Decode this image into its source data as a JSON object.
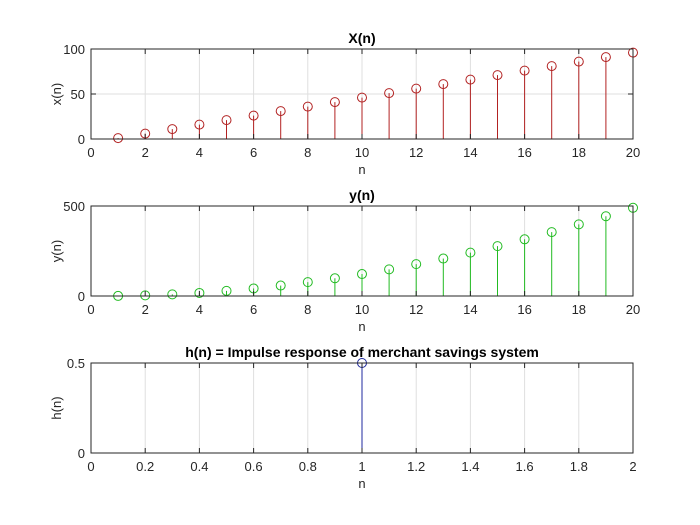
{
  "figure": {
    "background": "#ffffff",
    "axes_color": "#262626",
    "grid_color": "#dfdfdf"
  },
  "chart_data": [
    {
      "type": "stem",
      "title": "X(n)",
      "xlabel": "n",
      "ylabel": "x(n)",
      "xlim": [
        0,
        20
      ],
      "ylim": [
        0,
        100
      ],
      "xticks": [
        0,
        2,
        4,
        6,
        8,
        10,
        12,
        14,
        16,
        18,
        20
      ],
      "xtick_labels": [
        "0",
        "2",
        "4",
        "6",
        "8",
        "10",
        "12",
        "14",
        "16",
        "18",
        "20"
      ],
      "yticks": [
        0,
        50,
        100
      ],
      "ytick_labels": [
        "0",
        "50",
        "100"
      ],
      "grid": true,
      "color": "#b22222",
      "x": [
        1,
        2,
        3,
        4,
        5,
        6,
        7,
        8,
        9,
        10,
        11,
        12,
        13,
        14,
        15,
        16,
        17,
        18,
        19,
        20
      ],
      "y": [
        1,
        6,
        11,
        16,
        21,
        26,
        31,
        36,
        41,
        46,
        51,
        56,
        61,
        66,
        71,
        76,
        81,
        86,
        91,
        96
      ]
    },
    {
      "type": "stem",
      "title": "y(n)",
      "xlabel": "n",
      "ylabel": "y(n)",
      "xlim": [
        0,
        20
      ],
      "ylim": [
        0,
        500
      ],
      "xticks": [
        0,
        2,
        4,
        6,
        8,
        10,
        12,
        14,
        16,
        18,
        20
      ],
      "xtick_labels": [
        "0",
        "2",
        "4",
        "6",
        "8",
        "10",
        "12",
        "14",
        "16",
        "18",
        "20"
      ],
      "yticks": [
        0,
        500
      ],
      "ytick_labels": [
        "0",
        "500"
      ],
      "grid": true,
      "color": "#22bb22",
      "x": [
        1,
        2,
        3,
        4,
        5,
        6,
        7,
        8,
        9,
        10,
        11,
        12,
        13,
        14,
        15,
        16,
        17,
        18,
        19,
        20
      ],
      "y": [
        0.5,
        3.5,
        9,
        17,
        28.5,
        42,
        58,
        77,
        98.5,
        122,
        148,
        177,
        208,
        241,
        277,
        315,
        355,
        398,
        443,
        490
      ]
    },
    {
      "type": "stem",
      "title": "h(n) = Impulse response of merchant savings system",
      "xlabel": "n",
      "ylabel": "h(n)",
      "xlim": [
        0,
        2
      ],
      "ylim": [
        0,
        0.5
      ],
      "xticks": [
        0,
        0.2,
        0.4,
        0.6,
        0.8,
        1,
        1.2,
        1.4,
        1.6,
        1.8,
        2
      ],
      "xtick_labels": [
        "0",
        "0.2",
        "0.4",
        "0.6",
        "0.8",
        "1",
        "1.2",
        "1.4",
        "1.6",
        "1.8",
        "2"
      ],
      "yticks": [
        0,
        0.5
      ],
      "ytick_labels": [
        "0",
        "0.5"
      ],
      "grid": true,
      "color": "#1f2a9f",
      "x": [
        1
      ],
      "y": [
        0.5
      ]
    }
  ]
}
